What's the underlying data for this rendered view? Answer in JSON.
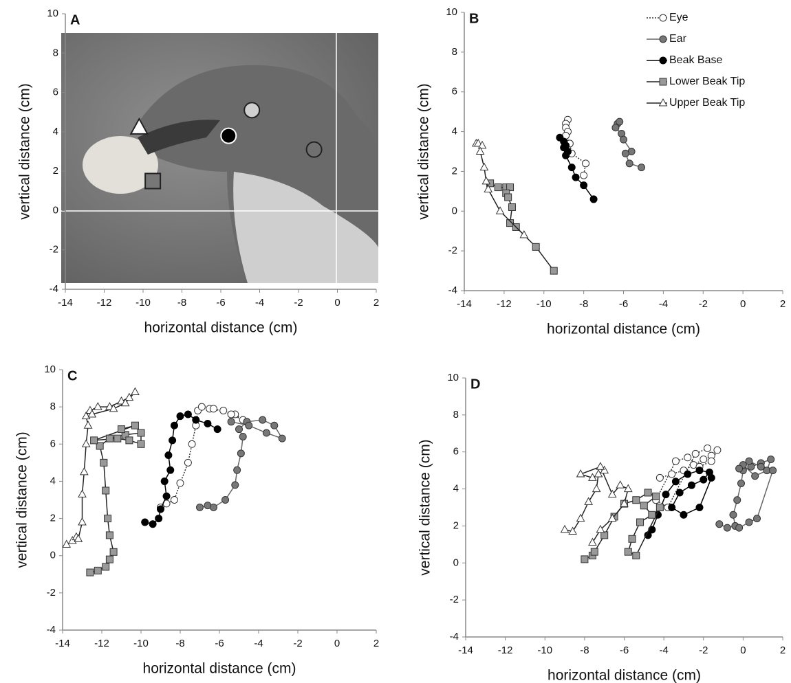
{
  "chart_data": [
    {
      "type": "scatter",
      "panel": "A",
      "xlabel": "horizontal distance (cm)",
      "ylabel": "vertical distance (cm)",
      "xlim": [
        -14,
        2
      ],
      "ylim": [
        -4,
        10
      ],
      "xticks": [
        -14,
        -12,
        -10,
        -8,
        -6,
        -4,
        -2,
        0,
        2
      ],
      "yticks": [
        -4,
        -2,
        0,
        2,
        4,
        6,
        8,
        10
      ],
      "series": [
        {
          "color": "#ffffff",
          "marker": "triangle",
          "x": [
            -10.2
          ],
          "y": [
            4.2
          ]
        },
        {
          "color": "#777777",
          "marker": "square",
          "x": [
            -9.5
          ],
          "y": [
            1.5
          ]
        },
        {
          "color": "#000000",
          "marker": "circle",
          "x": [
            -5.6
          ],
          "y": [
            3.8
          ]
        },
        {
          "color": "#d0d0d0",
          "marker": "circle",
          "x": [
            -4.4
          ],
          "y": [
            5.1
          ]
        },
        {
          "color": "#707070",
          "marker": "circle",
          "x": [
            -1.2
          ],
          "y": [
            3.1
          ]
        }
      ]
    },
    {
      "type": "line",
      "panel": "B",
      "xlabel": "horizontal distance (cm)",
      "ylabel": "vertical distance (cm)",
      "xlim": [
        -14,
        2
      ],
      "ylim": [
        -4,
        10
      ],
      "xticks": [
        -14,
        -12,
        -10,
        -8,
        -6,
        -4,
        -2,
        0,
        2
      ],
      "yticks": [
        -4,
        -2,
        0,
        2,
        4,
        6,
        8,
        10
      ],
      "legend": "top-right",
      "series": [
        {
          "name": "Eye",
          "color": "#ffffff",
          "line_color": "#333333",
          "marker": "circle",
          "dash": "dotted",
          "x": [
            -8.8,
            -8.9,
            -8.9,
            -8.8,
            -8.9,
            -8.7,
            -8.6,
            -7.9,
            -8.0
          ],
          "y": [
            4.6,
            4.4,
            4.2,
            4.0,
            3.8,
            3.4,
            2.9,
            2.4,
            1.8
          ]
        },
        {
          "name": "Ear",
          "color": "#777777",
          "line_color": "#666666",
          "marker": "circle",
          "dash": "solid",
          "x": [
            -6.3,
            -6.2,
            -6.4,
            -6.1,
            -6.0,
            -5.6,
            -5.9,
            -5.7,
            -5.1
          ],
          "y": [
            4.4,
            4.5,
            4.2,
            3.9,
            3.6,
            3.0,
            2.9,
            2.4,
            2.2
          ]
        },
        {
          "name": "Beak Base",
          "color": "#000000",
          "line_color": "#000000",
          "marker": "circle",
          "dash": "solid",
          "x": [
            -9.2,
            -9.0,
            -8.9,
            -9.0,
            -8.8,
            -8.9,
            -8.6,
            -8.4,
            -8.0,
            -7.5
          ],
          "y": [
            3.7,
            3.5,
            3.3,
            3.2,
            3.0,
            2.8,
            2.2,
            1.7,
            1.3,
            0.6
          ]
        },
        {
          "name": "Lower Beak Tip",
          "color": "#999999",
          "line_color": "#222222",
          "marker": "square",
          "dash": "solid",
          "x": [
            -12.7,
            -12.3,
            -11.9,
            -11.7,
            -11.9,
            -11.8,
            -11.6,
            -11.7,
            -11.4,
            -10.4,
            -9.5
          ],
          "y": [
            1.4,
            1.2,
            1.2,
            1.2,
            0.9,
            0.7,
            0.2,
            -0.6,
            -0.8,
            -1.8,
            -3.0
          ]
        },
        {
          "name": "Upper Beak Tip",
          "color": "#ffffff",
          "line_color": "#222222",
          "marker": "triangle",
          "dash": "solid",
          "x": [
            -13.4,
            -13.3,
            -13.1,
            -13.2,
            -13.0,
            -12.9,
            -12.8,
            -12.2,
            -11.0
          ],
          "y": [
            3.4,
            3.4,
            3.3,
            3.0,
            2.2,
            1.5,
            1.1,
            0.0,
            -1.2
          ]
        }
      ]
    },
    {
      "type": "line",
      "panel": "C",
      "xlabel": "horizontal distance (cm)",
      "ylabel": "vertical distance (cm)",
      "xlim": [
        -14,
        2
      ],
      "ylim": [
        -4,
        10
      ],
      "xticks": [
        -14,
        -12,
        -10,
        -8,
        -6,
        -4,
        -2,
        0,
        2
      ],
      "yticks": [
        -4,
        -2,
        0,
        2,
        4,
        6,
        8,
        10
      ],
      "series": [
        {
          "color": "#ffffff",
          "line_color": "#333333",
          "marker": "circle",
          "dash": "dotted",
          "x": [
            -9.0,
            -8.7,
            -8.3,
            -8.0,
            -7.6,
            -7.4,
            -7.2,
            -7.1,
            -6.9,
            -6.5,
            -5.8,
            -5.2,
            -4.8,
            -5.4,
            -6.3
          ],
          "y": [
            2.6,
            2.8,
            3.0,
            3.9,
            5.0,
            6.0,
            7.0,
            7.8,
            8.0,
            7.9,
            7.8,
            7.6,
            7.3,
            7.6,
            7.9
          ]
        },
        {
          "color": "#777777",
          "line_color": "#666666",
          "marker": "circle",
          "dash": "solid",
          "x": [
            -7.0,
            -6.6,
            -6.3,
            -5.7,
            -5.2,
            -5.1,
            -4.9,
            -4.8,
            -5.0,
            -4.6,
            -3.8,
            -3.2,
            -2.8,
            -3.6,
            -4.5,
            -5.4
          ],
          "y": [
            2.6,
            2.7,
            2.6,
            3.0,
            3.8,
            4.6,
            5.5,
            6.4,
            6.8,
            7.2,
            7.3,
            7.0,
            6.3,
            6.6,
            7.0,
            7.2
          ]
        },
        {
          "color": "#000000",
          "line_color": "#000000",
          "marker": "circle",
          "dash": "solid",
          "x": [
            -9.8,
            -9.4,
            -9.1,
            -9.0,
            -8.7,
            -8.8,
            -8.5,
            -8.6,
            -8.4,
            -8.3,
            -8.0,
            -7.6,
            -7.2,
            -6.6,
            -6.1
          ],
          "y": [
            1.8,
            1.7,
            2.0,
            2.5,
            3.2,
            4.0,
            4.6,
            5.4,
            6.2,
            7.0,
            7.5,
            7.6,
            7.3,
            7.1,
            6.8
          ]
        },
        {
          "color": "#999999",
          "line_color": "#222222",
          "marker": "square",
          "dash": "solid",
          "x": [
            -12.6,
            -12.2,
            -11.8,
            -11.6,
            -11.4,
            -11.6,
            -11.7,
            -11.8,
            -11.9,
            -12.1,
            -11.6,
            -10.8,
            -10.0,
            -10.0,
            -10.6,
            -11.2,
            -12.4,
            -10.3,
            -11.0
          ],
          "y": [
            -0.9,
            -0.8,
            -0.6,
            -0.2,
            0.2,
            1.1,
            2.0,
            3.5,
            5.0,
            5.9,
            6.3,
            6.5,
            6.6,
            6.0,
            6.2,
            6.3,
            6.2,
            7.0,
            6.8
          ]
        },
        {
          "color": "#ffffff",
          "line_color": "#222222",
          "marker": "triangle",
          "dash": "solid",
          "x": [
            -13.8,
            -13.5,
            -13.3,
            -13.2,
            -13.0,
            -13.0,
            -12.9,
            -12.8,
            -12.7,
            -12.8,
            -12.6,
            -12.2,
            -11.6,
            -11.0,
            -10.6,
            -10.3,
            -10.8,
            -11.4,
            -12.5
          ],
          "y": [
            0.6,
            0.8,
            1.0,
            0.9,
            1.8,
            3.3,
            4.5,
            6.0,
            7.0,
            7.5,
            7.8,
            8.0,
            8.0,
            8.3,
            8.5,
            8.8,
            8.2,
            7.9,
            7.6
          ]
        }
      ]
    },
    {
      "type": "line",
      "panel": "D",
      "xlabel": "horizontal distance (cm)",
      "ylabel": "vertical distance (cm)",
      "xlim": [
        -14,
        2
      ],
      "ylim": [
        -4,
        10
      ],
      "xticks": [
        -14,
        -12,
        -10,
        -8,
        -6,
        -4,
        -2,
        0,
        2
      ],
      "yticks": [
        -4,
        -2,
        0,
        2,
        4,
        6,
        8,
        10
      ],
      "series": [
        {
          "color": "#ffffff",
          "line_color": "#333333",
          "marker": "circle",
          "dash": "dotted",
          "x": [
            -4.2,
            -3.6,
            -3.0,
            -2.5,
            -2.0,
            -1.6,
            -1.3,
            -1.6,
            -2.2,
            -2.8,
            -3.4,
            -4.4,
            -3.8,
            -2.4,
            -1.8
          ],
          "y": [
            4.6,
            4.8,
            5.0,
            5.3,
            5.6,
            5.8,
            6.1,
            5.5,
            5.2,
            5.7,
            5.5,
            3.4,
            3.0,
            5.9,
            6.2
          ]
        },
        {
          "color": "#777777",
          "line_color": "#666666",
          "marker": "circle",
          "dash": "solid",
          "x": [
            -1.2,
            -0.8,
            -0.4,
            -0.5,
            -0.3,
            -0.1,
            0.0,
            0.4,
            0.9,
            1.4,
            1.2,
            0.6,
            0.0,
            -0.2,
            0.3,
            0.9,
            1.5,
            0.7,
            0.3,
            -0.2
          ],
          "y": [
            2.1,
            1.9,
            2.0,
            2.6,
            3.4,
            4.3,
            5.0,
            5.2,
            5.4,
            5.6,
            5.0,
            4.7,
            5.3,
            5.1,
            5.5,
            5.2,
            5.0,
            2.4,
            2.2,
            1.9
          ]
        },
        {
          "color": "#000000",
          "line_color": "#000000",
          "marker": "circle",
          "dash": "solid",
          "x": [
            -4.8,
            -4.6,
            -4.3,
            -3.9,
            -3.4,
            -2.8,
            -2.2,
            -1.7,
            -2.0,
            -2.6,
            -3.2,
            -3.6,
            -3.0,
            -2.2,
            -1.6
          ],
          "y": [
            1.5,
            1.8,
            2.6,
            3.7,
            4.4,
            4.8,
            5.0,
            4.9,
            4.5,
            4.2,
            3.8,
            3.0,
            2.6,
            3.0,
            4.6
          ]
        },
        {
          "color": "#999999",
          "line_color": "#222222",
          "marker": "square",
          "dash": "solid",
          "x": [
            -8.0,
            -7.6,
            -7.5,
            -7.0,
            -6.5,
            -6.0,
            -5.4,
            -4.8,
            -4.4,
            -5.0,
            -4.6,
            -5.2,
            -5.6,
            -5.8,
            -5.4,
            -4.2
          ],
          "y": [
            0.2,
            0.4,
            0.6,
            1.5,
            2.5,
            3.2,
            3.4,
            3.8,
            3.6,
            3.1,
            2.6,
            2.2,
            1.3,
            0.6,
            0.4,
            3.0
          ]
        },
        {
          "color": "#ffffff",
          "line_color": "#222222",
          "marker": "triangle",
          "dash": "solid",
          "x": [
            -9.0,
            -8.6,
            -8.2,
            -7.8,
            -7.4,
            -7.3,
            -7.0,
            -7.6,
            -8.2,
            -7.2,
            -6.6,
            -6.2,
            -5.8,
            -6.0,
            -6.6,
            -7.2,
            -7.6
          ],
          "y": [
            1.8,
            1.7,
            2.4,
            3.3,
            4.0,
            4.8,
            5.0,
            4.6,
            4.8,
            5.2,
            3.7,
            4.2,
            4.0,
            3.2,
            2.4,
            1.8,
            1.1
          ]
        }
      ]
    }
  ]
}
